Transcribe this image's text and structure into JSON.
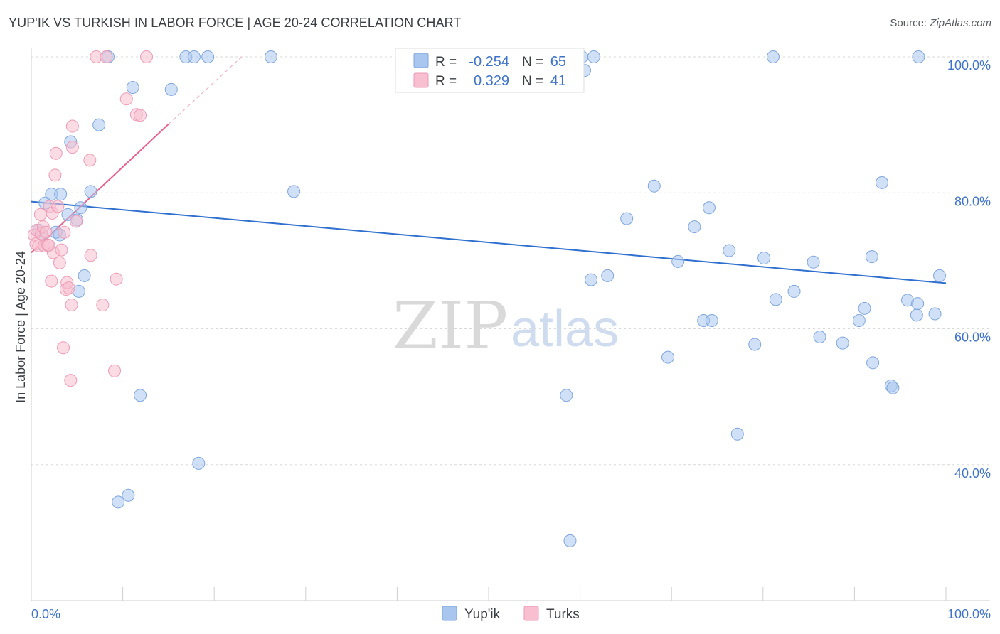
{
  "header": {
    "title": "YUP'IK VS TURKISH IN LABOR FORCE | AGE 20-24 CORRELATION CHART",
    "source_label": "Source: ",
    "source_site": "ZipAtlas.com"
  },
  "watermark": {
    "zip": "ZIP",
    "atlas": "atlas"
  },
  "legend": {
    "r_label": "R =",
    "n_label": "N =",
    "rows": [
      {
        "name": "Yup'ik",
        "r": "-0.254",
        "n": "65",
        "color": "#a9c6ef",
        "stroke": "#7fa6de"
      },
      {
        "name": "Turks",
        "r": "0.329",
        "n": "41",
        "color": "#f7bfd0",
        "stroke": "#ee9ab5"
      }
    ]
  },
  "chart_data": {
    "type": "scatter",
    "title": "YUP'IK VS TURKISH IN LABOR FORCE | AGE 20-24 CORRELATION CHART",
    "xlabel": "",
    "ylabel": "In Labor Force | Age 20-24",
    "xlim": [
      0,
      100
    ],
    "ylim": [
      20,
      102
    ],
    "x_tick_labels": [
      "0.0%",
      "100.0%"
    ],
    "y_ticks": [
      40,
      60,
      80,
      100
    ],
    "y_tick_labels": [
      "40.0%",
      "60.0%",
      "80.0%",
      "100.0%"
    ],
    "grid": true,
    "series": [
      {
        "name": "Yup'ik",
        "color": "#a9c6ef",
        "trend": {
          "x": [
            0,
            100
          ],
          "y": [
            78.7,
            66.7
          ],
          "color": "#2f6fce"
        },
        "points": [
          [
            1.5,
            78.5
          ],
          [
            2.2,
            79.8
          ],
          [
            3.1,
            73.8
          ],
          [
            3.2,
            79.8
          ],
          [
            4,
            76.8
          ],
          [
            4.3,
            87.5
          ],
          [
            5,
            76
          ],
          [
            5.2,
            65.5
          ],
          [
            5.4,
            77.8
          ],
          [
            5.8,
            67.8
          ],
          [
            6.5,
            80.2
          ],
          [
            7.4,
            90
          ],
          [
            8.4,
            100
          ],
          [
            9.5,
            34.5
          ],
          [
            10.6,
            35.5
          ],
          [
            11.1,
            95.5
          ],
          [
            11.9,
            50.2
          ],
          [
            15.3,
            95.2
          ],
          [
            16.9,
            100
          ],
          [
            17.8,
            100
          ],
          [
            18.3,
            40.2
          ],
          [
            19.3,
            100
          ],
          [
            26.2,
            100
          ],
          [
            28.7,
            80.2
          ],
          [
            58.5,
            50.2
          ],
          [
            58.9,
            28.8
          ],
          [
            60.2,
            100
          ],
          [
            60.5,
            98
          ],
          [
            61.2,
            67.2
          ],
          [
            61.5,
            100
          ],
          [
            63,
            67.8
          ],
          [
            65.1,
            76.2
          ],
          [
            68.1,
            81
          ],
          [
            69.6,
            55.8
          ],
          [
            70.7,
            69.9
          ],
          [
            72.5,
            75
          ],
          [
            73.5,
            61.2
          ],
          [
            74.1,
            77.8
          ],
          [
            74.4,
            61.2
          ],
          [
            76.3,
            71.5
          ],
          [
            77.2,
            44.5
          ],
          [
            79.1,
            57.7
          ],
          [
            80.1,
            70.4
          ],
          [
            81.1,
            100
          ],
          [
            81.4,
            64.3
          ],
          [
            83.4,
            65.5
          ],
          [
            85.5,
            69.8
          ],
          [
            86.2,
            58.8
          ],
          [
            88.7,
            57.9
          ],
          [
            90.5,
            61.2
          ],
          [
            91.1,
            63
          ],
          [
            91.9,
            70.6
          ],
          [
            92,
            55
          ],
          [
            93,
            81.5
          ],
          [
            94,
            51.6
          ],
          [
            94.2,
            51.3
          ],
          [
            95.8,
            64.2
          ],
          [
            96.8,
            62
          ],
          [
            96.9,
            63.7
          ],
          [
            97,
            100
          ],
          [
            98.8,
            62.2
          ],
          [
            99.3,
            67.8
          ],
          [
            1.2,
            73.8
          ],
          [
            2.7,
            74.2
          ],
          [
            0.8,
            74.5
          ]
        ]
      },
      {
        "name": "Turks",
        "color": "#f7bfd0",
        "trend": {
          "x": [
            0,
            15
          ],
          "y": [
            71.2,
            90.1
          ],
          "color": "#e8608d",
          "dashed_to": {
            "x": 23,
            "y": 100
          }
        },
        "points": [
          [
            0.3,
            73.8
          ],
          [
            0.5,
            72.5
          ],
          [
            0.6,
            74.5
          ],
          [
            0.8,
            72.2
          ],
          [
            1,
            76.8
          ],
          [
            1.1,
            74
          ],
          [
            1.3,
            75
          ],
          [
            1.4,
            72.2
          ],
          [
            1.6,
            74.2
          ],
          [
            1.8,
            72.3
          ],
          [
            2,
            78
          ],
          [
            2.2,
            67
          ],
          [
            2.3,
            77
          ],
          [
            2.4,
            71.2
          ],
          [
            2.6,
            82.6
          ],
          [
            2.7,
            85.8
          ],
          [
            2.9,
            78
          ],
          [
            3.1,
            69.7
          ],
          [
            3.3,
            71.6
          ],
          [
            3.5,
            57.2
          ],
          [
            3.6,
            74.2
          ],
          [
            3.8,
            65.8
          ],
          [
            3.9,
            66.8
          ],
          [
            4.1,
            66
          ],
          [
            4.3,
            52.4
          ],
          [
            4.4,
            63.5
          ],
          [
            4.5,
            89.8
          ],
          [
            4.5,
            86.7
          ],
          [
            6.4,
            84.8
          ],
          [
            6.5,
            70.8
          ],
          [
            7.1,
            100
          ],
          [
            7.8,
            63.5
          ],
          [
            8.2,
            100
          ],
          [
            9.1,
            53.8
          ],
          [
            9.3,
            67.3
          ],
          [
            10.4,
            93.8
          ],
          [
            11.5,
            91.5
          ],
          [
            11.9,
            91.4
          ],
          [
            12.6,
            100
          ],
          [
            4.9,
            75.8
          ],
          [
            1.9,
            72.3
          ]
        ]
      }
    ]
  }
}
